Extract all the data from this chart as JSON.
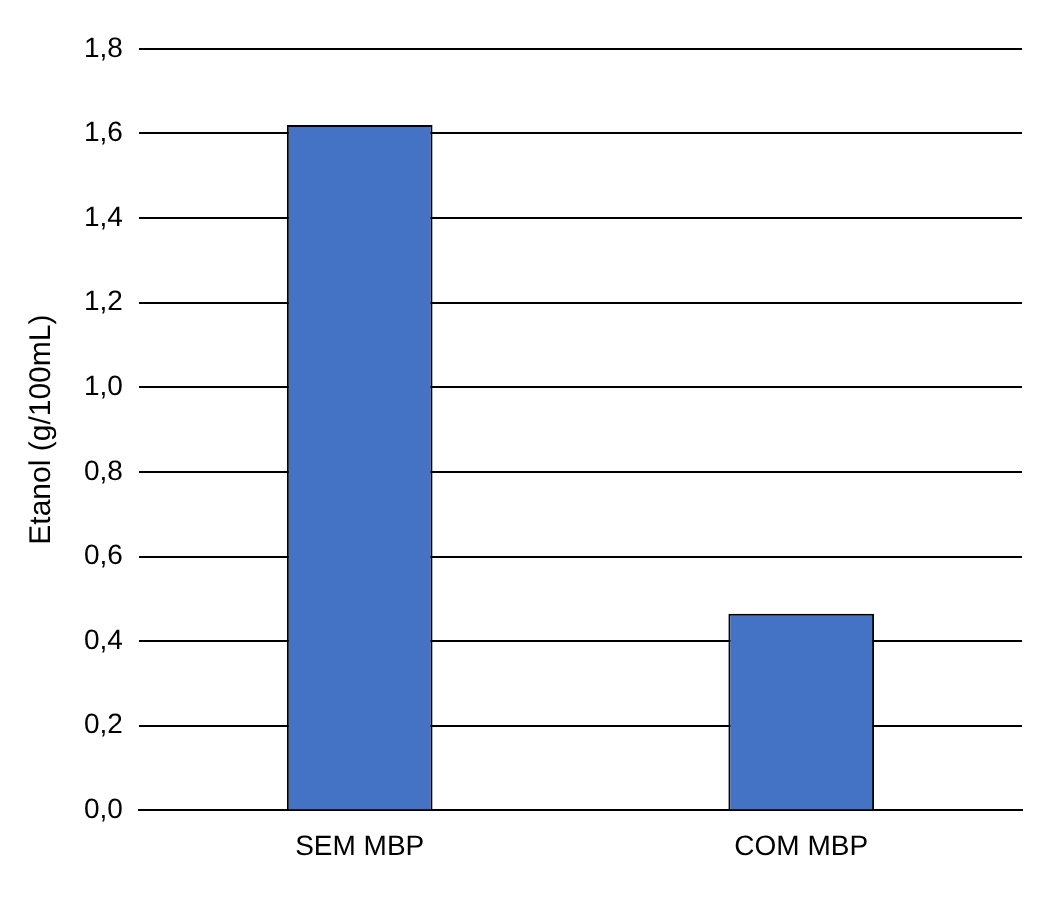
{
  "chart_data": {
    "type": "bar",
    "ylabel": "Etanol (g/100mL)",
    "categories": [
      "SEM MBP",
      "COM MBP"
    ],
    "values": [
      1.62,
      0.465
    ],
    "color": "#4472c4",
    "ylim": [
      0,
      1.8
    ],
    "yticks": [
      {
        "value": 0,
        "label": "0,0"
      },
      {
        "value": 0.2,
        "label": "0,2"
      },
      {
        "value": 0.4,
        "label": "0,4"
      },
      {
        "value": 0.6,
        "label": "0,6"
      },
      {
        "value": 0.8,
        "label": "0,8"
      },
      {
        "value": 1.0,
        "label": "1,0"
      },
      {
        "value": 1.2,
        "label": "1,2"
      },
      {
        "value": 1.4,
        "label": "1,4"
      },
      {
        "value": 1.6,
        "label": "1,6"
      },
      {
        "value": 1.8,
        "label": "1,8"
      }
    ],
    "grid": "y",
    "legend": false
  }
}
